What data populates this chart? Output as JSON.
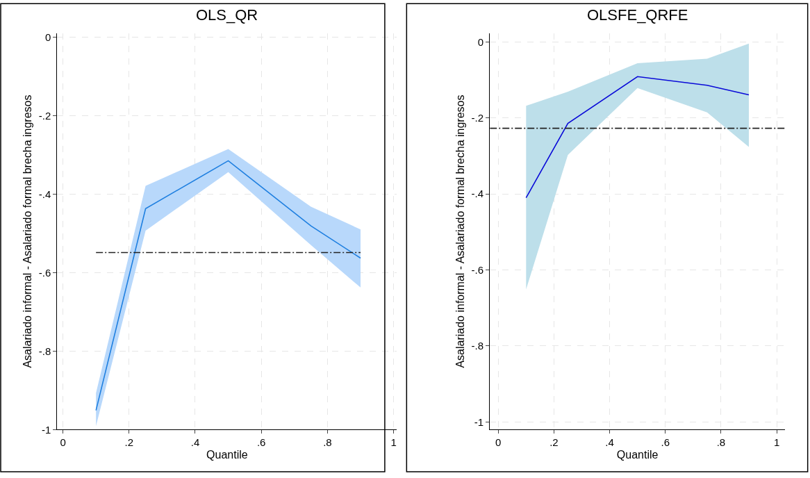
{
  "chart_data": [
    {
      "type": "line",
      "title": "OLS_QR",
      "xlabel": "Quantile",
      "ylabel": "Asalariado informal - Asalariado formal brecha ingresos",
      "grid": true,
      "marker": "none",
      "xlim": [
        -0.017,
        1.01
      ],
      "ylim": [
        -1.0,
        0.01
      ],
      "xticks": [
        0,
        {
          "value": 0.2,
          "label": ".2"
        },
        {
          "value": 0.4,
          "label": ".4"
        },
        {
          "value": 0.6,
          "label": ".6"
        },
        {
          "value": 0.8,
          "label": ".8"
        },
        1
      ],
      "yticks": [
        -1,
        {
          "value": -0.8,
          "label": "-.8"
        },
        {
          "value": -0.6,
          "label": "-.6"
        },
        {
          "value": -0.4,
          "label": "-.4"
        },
        {
          "value": -0.2,
          "label": "-.2"
        },
        0
      ],
      "x": [
        0.1,
        0.25,
        0.5,
        0.75,
        0.9
      ],
      "series": [
        {
          "color": "#1e7fe0",
          "values": [
            -0.951,
            -0.437,
            -0.315,
            -0.481,
            -0.563
          ],
          "lower": [
            -0.991,
            -0.493,
            -0.344,
            -0.53,
            -0.638
          ],
          "upper": [
            -0.907,
            -0.379,
            -0.285,
            -0.432,
            -0.49
          ]
        },
        {
          "color": "#222222",
          "line_style": "dashed",
          "x": [
            0.1,
            0.9
          ],
          "values": [
            -0.549,
            -0.549
          ]
        }
      ]
    },
    {
      "type": "line",
      "title": "OLSFE_QRFE",
      "xlabel": "Quantile",
      "ylabel": "Asalariado informal - Asalariado formal brecha ingresos",
      "grid": true,
      "marker": "none",
      "xlim": [
        -0.03,
        1.03
      ],
      "ylim": [
        -1.02,
        0.023
      ],
      "xticks": [
        0,
        {
          "value": 0.2,
          "label": ".2"
        },
        {
          "value": 0.4,
          "label": ".4"
        },
        {
          "value": 0.6,
          "label": ".6"
        },
        {
          "value": 0.8,
          "label": ".8"
        },
        1
      ],
      "yticks": [
        -1,
        {
          "value": -0.8,
          "label": "-.8"
        },
        {
          "value": -0.6,
          "label": "-.6"
        },
        {
          "value": -0.4,
          "label": "-.4"
        },
        {
          "value": -0.2,
          "label": "-.2"
        },
        0
      ],
      "x": [
        0.1,
        0.25,
        0.5,
        0.75,
        0.9
      ],
      "series": [
        {
          "color": "#0a0ad8",
          "values": [
            -0.41,
            -0.214,
            -0.091,
            -0.114,
            -0.139
          ],
          "lower": [
            -0.651,
            -0.297,
            -0.121,
            -0.185,
            -0.276
          ],
          "upper": [
            -0.168,
            -0.131,
            -0.056,
            -0.044,
            -0.004
          ]
        }
      ],
      "ref_lines": [
        {
          "axis": "y",
          "value": -0.227,
          "color": "#222222",
          "line_style": "dashed"
        }
      ]
    }
  ]
}
